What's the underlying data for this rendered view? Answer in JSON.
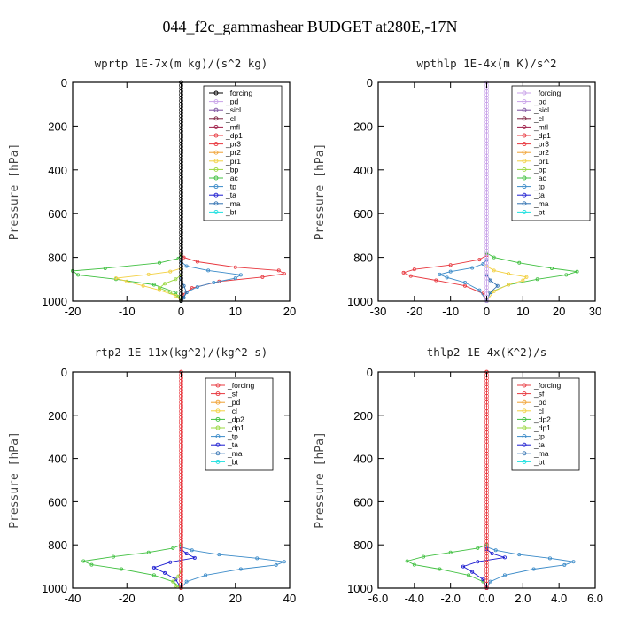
{
  "figure_title": "044_f2c_gammashear  BUDGET at280E,-17N",
  "chart_data": [
    {
      "type": "line",
      "title": "wprtp  1E-7x(m kg)/(s^2 kg)",
      "ylabel": "Pressure [hPa]",
      "xlim": [
        -20,
        20
      ],
      "ylim": [
        1000,
        0
      ],
      "xticks": [
        -20,
        -10,
        0,
        10,
        20
      ],
      "xtick_labels": [
        "-20",
        "-10",
        "0",
        "10",
        "20"
      ],
      "yticks": [
        0,
        200,
        400,
        600,
        800,
        1000
      ],
      "ytick_labels": [
        "0",
        "200",
        "400",
        "600",
        "800",
        "1000"
      ],
      "legend": [
        {
          "name": "_forcing",
          "color": "#000000"
        },
        {
          "name": "_pd",
          "color": "#c8a2e8"
        },
        {
          "name": "_sicl",
          "color": "#7b4fa0"
        },
        {
          "name": "_cl",
          "color": "#7a1f3d"
        },
        {
          "name": "_mfl",
          "color": "#a0204a"
        },
        {
          "name": "_dp1",
          "color": "#e8383f"
        },
        {
          "name": "_pr3",
          "color": "#e8383f"
        },
        {
          "name": "_pr2",
          "color": "#f0a030"
        },
        {
          "name": "_pr1",
          "color": "#f2d040"
        },
        {
          "name": "_bp",
          "color": "#9ad840"
        },
        {
          "name": "_ac",
          "color": "#40c040"
        },
        {
          "name": "_tp",
          "color": "#3a8ac8"
        },
        {
          "name": "_ta",
          "color": "#1a1ad0"
        },
        {
          "name": "_ma",
          "color": "#3070b0"
        },
        {
          "name": "_bt",
          "color": "#20e0e0"
        }
      ],
      "series": [
        {
          "name": "_dp1",
          "color": "#e8383f",
          "x": [
            0,
            0.5,
            3,
            10,
            18,
            19,
            15,
            7,
            2,
            0.3,
            0
          ],
          "y": [
            780,
            800,
            820,
            845,
            860,
            875,
            890,
            910,
            940,
            970,
            1000
          ]
        },
        {
          "name": "_ac",
          "color": "#40c040",
          "x": [
            0,
            -0.5,
            -4,
            -14,
            -20,
            -19,
            -12,
            -5,
            -1,
            0
          ],
          "y": [
            790,
            805,
            825,
            850,
            862,
            880,
            900,
            925,
            960,
            1000
          ]
        },
        {
          "name": "_tp",
          "color": "#3a8ac8",
          "x": [
            0,
            1,
            5,
            11,
            10,
            6,
            3,
            1,
            0
          ],
          "y": [
            820,
            840,
            860,
            880,
            895,
            915,
            935,
            960,
            1000
          ]
        },
        {
          "name": "_pr1",
          "color": "#f2d040",
          "x": [
            0,
            -2,
            -6,
            -12,
            -10,
            -7,
            -4,
            -1,
            0
          ],
          "y": [
            850,
            865,
            878,
            895,
            910,
            930,
            950,
            975,
            1000
          ]
        },
        {
          "name": "_bp",
          "color": "#9ad840",
          "x": [
            0,
            -1,
            -3,
            -4,
            -2,
            -0.5,
            0
          ],
          "y": [
            880,
            900,
            920,
            940,
            960,
            980,
            1000
          ]
        },
        {
          "name": "_ma",
          "color": "#3070b0",
          "x": [
            0,
            0.5,
            1,
            0.5,
            0
          ],
          "y": [
            900,
            930,
            960,
            985,
            1000
          ]
        },
        {
          "name": "_forcing",
          "color": "#000000",
          "x": [
            0,
            0
          ],
          "y": [
            0,
            1000
          ]
        }
      ]
    },
    {
      "type": "line",
      "title": "wpthlp  1E-4x(m K)/s^2",
      "ylabel": "Pressure [hPa]",
      "xlim": [
        -30,
        30
      ],
      "ylim": [
        1000,
        0
      ],
      "xticks": [
        -30,
        -20,
        -10,
        0,
        10,
        20,
        30
      ],
      "xtick_labels": [
        "-30",
        "-20",
        "-10",
        "0",
        "10",
        "20",
        "30"
      ],
      "yticks": [
        0,
        200,
        400,
        600,
        800,
        1000
      ],
      "ytick_labels": [
        "0",
        "200",
        "400",
        "600",
        "800",
        "1000"
      ],
      "legend": [
        {
          "name": "_forcing",
          "color": "#c8a2e8"
        },
        {
          "name": "_pd",
          "color": "#c8a2e8"
        },
        {
          "name": "_sicl",
          "color": "#7b4fa0"
        },
        {
          "name": "_cl",
          "color": "#7a1f3d"
        },
        {
          "name": "_mfl",
          "color": "#a0204a"
        },
        {
          "name": "_dp1",
          "color": "#e8383f"
        },
        {
          "name": "_pr3",
          "color": "#e8383f"
        },
        {
          "name": "_pr2",
          "color": "#f0a030"
        },
        {
          "name": "_pr1",
          "color": "#f2d040"
        },
        {
          "name": "_bp",
          "color": "#9ad840"
        },
        {
          "name": "_ac",
          "color": "#40c040"
        },
        {
          "name": "_tp",
          "color": "#3a8ac8"
        },
        {
          "name": "_ta",
          "color": "#1a1ad0"
        },
        {
          "name": "_ma",
          "color": "#3070b0"
        },
        {
          "name": "_bt",
          "color": "#20e0e0"
        }
      ],
      "series": [
        {
          "name": "_dp1",
          "color": "#e8383f",
          "x": [
            0,
            -2,
            -10,
            -20,
            -23,
            -21,
            -14,
            -6,
            -1,
            0
          ],
          "y": [
            790,
            810,
            835,
            855,
            870,
            885,
            905,
            930,
            965,
            1000
          ]
        },
        {
          "name": "_ac",
          "color": "#40c040",
          "x": [
            0,
            2,
            9,
            18,
            25,
            22,
            14,
            6,
            1,
            0
          ],
          "y": [
            780,
            800,
            825,
            850,
            865,
            880,
            900,
            925,
            960,
            1000
          ]
        },
        {
          "name": "_pr1",
          "color": "#f2d040",
          "x": [
            0,
            2,
            6,
            11,
            10,
            6,
            2,
            0
          ],
          "y": [
            840,
            860,
            875,
            890,
            905,
            925,
            955,
            1000
          ]
        },
        {
          "name": "_tp",
          "color": "#3a8ac8",
          "x": [
            0,
            -1,
            -4,
            -10,
            -13,
            -11,
            -6,
            -2,
            0
          ],
          "y": [
            810,
            830,
            848,
            865,
            878,
            892,
            915,
            950,
            1000
          ]
        },
        {
          "name": "_ma",
          "color": "#3070b0",
          "x": [
            0,
            1,
            3,
            1,
            0
          ],
          "y": [
            880,
            905,
            930,
            960,
            1000
          ]
        },
        {
          "name": "_pd",
          "color": "#c8a2e8",
          "x": [
            0,
            0
          ],
          "y": [
            0,
            1000
          ]
        }
      ]
    },
    {
      "type": "line",
      "title": "rtp2  1E-11x(kg^2)/(kg^2 s)",
      "ylabel": "Pressure [hPa]",
      "xlim": [
        -40,
        40
      ],
      "ylim": [
        1000,
        0
      ],
      "xticks": [
        -40,
        -20,
        0,
        20,
        40
      ],
      "xtick_labels": [
        "-40",
        "-20",
        "0",
        "20",
        "40"
      ],
      "yticks": [
        0,
        200,
        400,
        600,
        800,
        1000
      ],
      "ytick_labels": [
        "0",
        "200",
        "400",
        "600",
        "800",
        "1000"
      ],
      "legend": [
        {
          "name": "_forcing",
          "color": "#e8383f"
        },
        {
          "name": "_sf",
          "color": "#e8383f"
        },
        {
          "name": "_pd",
          "color": "#f0a030"
        },
        {
          "name": "_cl",
          "color": "#f2d040"
        },
        {
          "name": "_dp2",
          "color": "#40c040"
        },
        {
          "name": "_dp1",
          "color": "#9ad840"
        },
        {
          "name": "_tp",
          "color": "#3a8ac8"
        },
        {
          "name": "_ta",
          "color": "#1a1ad0"
        },
        {
          "name": "_ma",
          "color": "#3070b0"
        },
        {
          "name": "_bt",
          "color": "#20e0e0"
        }
      ],
      "series": [
        {
          "name": "_dp2",
          "color": "#40c040",
          "x": [
            0,
            -3,
            -12,
            -25,
            -36,
            -33,
            -22,
            -10,
            -3,
            0
          ],
          "y": [
            800,
            815,
            835,
            855,
            875,
            892,
            912,
            940,
            970,
            1000
          ]
        },
        {
          "name": "_tp",
          "color": "#3a8ac8",
          "x": [
            0,
            4,
            14,
            28,
            38,
            35,
            22,
            9,
            2,
            0
          ],
          "y": [
            810,
            825,
            845,
            862,
            878,
            893,
            912,
            940,
            970,
            1000
          ]
        },
        {
          "name": "_ta",
          "color": "#1a1ad0",
          "x": [
            0,
            2,
            5,
            -4,
            -10,
            -6,
            -2,
            0
          ],
          "y": [
            820,
            840,
            860,
            880,
            905,
            930,
            960,
            1000
          ]
        },
        {
          "name": "_dp1",
          "color": "#9ad840",
          "x": [
            0,
            -1,
            -3,
            -2,
            0
          ],
          "y": [
            920,
            945,
            970,
            990,
            1000
          ]
        },
        {
          "name": "_forcing",
          "color": "#e8383f",
          "x": [
            0,
            0
          ],
          "y": [
            0,
            1000
          ]
        }
      ]
    },
    {
      "type": "line",
      "title": "thlp2  1E-4x(K^2)/s",
      "ylabel": "Pressure [hPa]",
      "xlim": [
        -6,
        6
      ],
      "ylim": [
        1000,
        0
      ],
      "xticks": [
        -6,
        -4,
        -2,
        0,
        2,
        4,
        6
      ],
      "xtick_labels": [
        "-6.0",
        "-4.0",
        "-2.0",
        "0.0",
        "2.0",
        "4.0",
        "6.0"
      ],
      "yticks": [
        0,
        200,
        400,
        600,
        800,
        1000
      ],
      "ytick_labels": [
        "0",
        "200",
        "400",
        "600",
        "800",
        "1000"
      ],
      "legend": [
        {
          "name": "_forcing",
          "color": "#e8383f"
        },
        {
          "name": "_sf",
          "color": "#e8383f"
        },
        {
          "name": "_pd",
          "color": "#f0a030"
        },
        {
          "name": "_cl",
          "color": "#f2d040"
        },
        {
          "name": "_dp2",
          "color": "#40c040"
        },
        {
          "name": "_dp1",
          "color": "#9ad840"
        },
        {
          "name": "_tp",
          "color": "#3a8ac8"
        },
        {
          "name": "_ta",
          "color": "#1a1ad0"
        },
        {
          "name": "_ma",
          "color": "#3070b0"
        },
        {
          "name": "_bt",
          "color": "#20e0e0"
        }
      ],
      "series": [
        {
          "name": "_dp2",
          "color": "#40c040",
          "x": [
            0,
            -0.5,
            -2,
            -3.5,
            -4.4,
            -4,
            -2.6,
            -1,
            -0.2,
            0
          ],
          "y": [
            800,
            815,
            835,
            855,
            875,
            892,
            912,
            940,
            970,
            1000
          ]
        },
        {
          "name": "_tp",
          "color": "#3a8ac8",
          "x": [
            0,
            0.5,
            1.8,
            3.5,
            4.8,
            4.3,
            2.6,
            1,
            0.2,
            0
          ],
          "y": [
            810,
            825,
            845,
            862,
            878,
            893,
            912,
            940,
            970,
            1000
          ]
        },
        {
          "name": "_ta",
          "color": "#1a1ad0",
          "x": [
            0,
            0.3,
            1,
            -0.5,
            -1.3,
            -0.8,
            -0.2,
            0
          ],
          "y": [
            820,
            840,
            858,
            878,
            900,
            925,
            960,
            1000
          ]
        },
        {
          "name": "_forcing",
          "color": "#e8383f",
          "x": [
            0,
            0
          ],
          "y": [
            0,
            1000
          ]
        }
      ]
    }
  ]
}
